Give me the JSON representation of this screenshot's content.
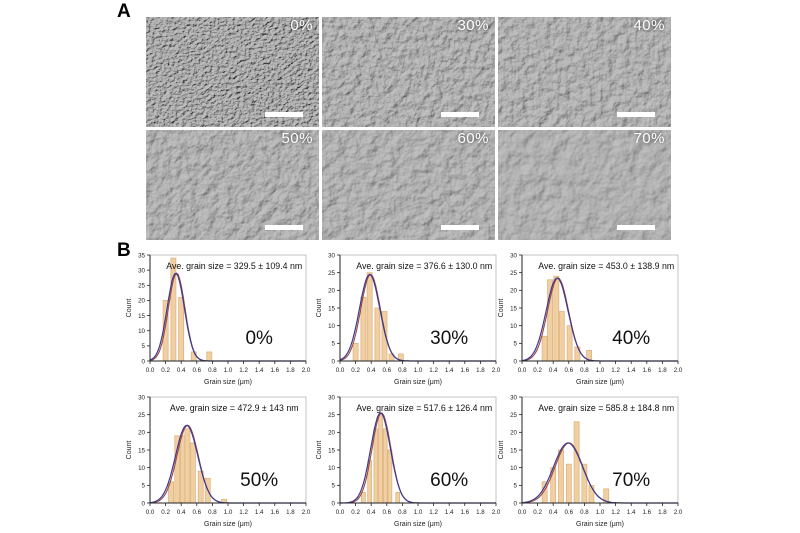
{
  "panel_a": {
    "label": "A",
    "images": [
      {
        "id": "0pct",
        "label": "0%"
      },
      {
        "id": "30pct",
        "label": "30%"
      },
      {
        "id": "40pct",
        "label": "40%"
      },
      {
        "id": "50pct",
        "label": "50%"
      },
      {
        "id": "60pct",
        "label": "60%"
      },
      {
        "id": "70pct",
        "label": "70%"
      }
    ]
  },
  "panel_b": {
    "label": "B"
  },
  "colors": {
    "bar_fill": "#f0cfa2",
    "bar_edge": "#dcae77",
    "fit_blue": "#3c3c8f",
    "fit_red": "#9e4545",
    "axis": "#222222",
    "text": "#111111",
    "frame": "#b5b5b5"
  },
  "chart_data": [
    {
      "type": "bar",
      "id": "0pct",
      "percent_label": "0%",
      "title": "Ave. grain size = 329.5 ± 109.4 nm",
      "mean_nm": 329.5,
      "sd_nm": 109.4,
      "xlabel": "Grain size (μm)",
      "ylabel": "Count",
      "xlim": [
        0.0,
        2.0
      ],
      "ylim": [
        0,
        35
      ],
      "xtick_step": 0.2,
      "ytick_step": 5,
      "bar_width_um": 0.065,
      "bars": [
        {
          "x": 0.2,
          "count": 20
        },
        {
          "x": 0.3,
          "count": 34
        },
        {
          "x": 0.4,
          "count": 21
        },
        {
          "x": 0.56,
          "count": 3
        },
        {
          "x": 0.76,
          "count": 3
        }
      ],
      "fit": {
        "mu_um": 0.33,
        "sigma_um": 0.11,
        "peak": 29
      }
    },
    {
      "type": "bar",
      "id": "30pct",
      "percent_label": "30%",
      "title": "Ave. grain size = 376.6 ± 130.0 nm",
      "mean_nm": 376.6,
      "sd_nm": 130.0,
      "xlabel": "Grain size (μm)",
      "ylabel": "Count",
      "xlim": [
        0.0,
        2.0
      ],
      "ylim": [
        0,
        30
      ],
      "xtick_step": 0.2,
      "ytick_step": 5,
      "bar_width_um": 0.065,
      "bars": [
        {
          "x": 0.2,
          "count": 5
        },
        {
          "x": 0.3,
          "count": 18
        },
        {
          "x": 0.38,
          "count": 25
        },
        {
          "x": 0.48,
          "count": 15
        },
        {
          "x": 0.57,
          "count": 14
        },
        {
          "x": 0.66,
          "count": 2
        },
        {
          "x": 0.78,
          "count": 2
        }
      ],
      "fit": {
        "mu_um": 0.38,
        "sigma_um": 0.13,
        "peak": 24.5
      }
    },
    {
      "type": "bar",
      "id": "40pct",
      "percent_label": "40%",
      "title": "Ave. grain size = 453.0 ± 138.9 nm",
      "mean_nm": 453.0,
      "sd_nm": 138.9,
      "xlabel": "Grain size (μm)",
      "ylabel": "Count",
      "xlim": [
        0.0,
        2.0
      ],
      "ylim": [
        0,
        30
      ],
      "xtick_step": 0.2,
      "ytick_step": 5,
      "bar_width_um": 0.065,
      "bars": [
        {
          "x": 0.29,
          "count": 7
        },
        {
          "x": 0.36,
          "count": 23
        },
        {
          "x": 0.44,
          "count": 24
        },
        {
          "x": 0.51,
          "count": 14
        },
        {
          "x": 0.61,
          "count": 10
        },
        {
          "x": 0.71,
          "count": 4
        },
        {
          "x": 0.86,
          "count": 3
        }
      ],
      "fit": {
        "mu_um": 0.45,
        "sigma_um": 0.14,
        "peak": 23.5
      }
    },
    {
      "type": "bar",
      "id": "50pct",
      "percent_label": "50%",
      "title": "Ave. grain size = 472.9 ± 143 nm",
      "mean_nm": 472.9,
      "sd_nm": 143,
      "xlabel": "Grain size (μm)",
      "ylabel": "Count",
      "xlim": [
        0.0,
        2.0
      ],
      "ylim": [
        0,
        30
      ],
      "xtick_step": 0.2,
      "ytick_step": 5,
      "bar_width_um": 0.065,
      "bars": [
        {
          "x": 0.27,
          "count": 6
        },
        {
          "x": 0.35,
          "count": 19
        },
        {
          "x": 0.42,
          "count": 19
        },
        {
          "x": 0.48,
          "count": 21
        },
        {
          "x": 0.55,
          "count": 17
        },
        {
          "x": 0.65,
          "count": 9
        },
        {
          "x": 0.74,
          "count": 7
        },
        {
          "x": 0.95,
          "count": 1
        }
      ],
      "fit": {
        "mu_um": 0.47,
        "sigma_um": 0.143,
        "peak": 22
      }
    },
    {
      "type": "bar",
      "id": "60pct",
      "percent_label": "60%",
      "title": "Ave. grain size = 517.6 ± 126.4 nm",
      "mean_nm": 517.6,
      "sd_nm": 126.4,
      "xlabel": "Grain size (μm)",
      "ylabel": "Count",
      "xlim": [
        0.0,
        2.0
      ],
      "ylim": [
        0,
        30
      ],
      "xtick_step": 0.2,
      "ytick_step": 5,
      "bar_width_um": 0.05,
      "bars": [
        {
          "x": 0.3,
          "count": 3
        },
        {
          "x": 0.38,
          "count": 12
        },
        {
          "x": 0.46,
          "count": 21
        },
        {
          "x": 0.52,
          "count": 25
        },
        {
          "x": 0.58,
          "count": 21
        },
        {
          "x": 0.64,
          "count": 15
        },
        {
          "x": 0.74,
          "count": 3
        }
      ],
      "fit": {
        "mu_um": 0.52,
        "sigma_um": 0.126,
        "peak": 25.5
      }
    },
    {
      "type": "bar",
      "id": "70pct",
      "percent_label": "70%",
      "title": "Ave. grain size = 585.8 ± 184.8 nm",
      "mean_nm": 585.8,
      "sd_nm": 184.8,
      "xlabel": "Grain size (μm)",
      "ylabel": "Count",
      "xlim": [
        0.0,
        2.0
      ],
      "ylim": [
        0,
        30
      ],
      "xtick_step": 0.2,
      "ytick_step": 5,
      "bar_width_um": 0.065,
      "bars": [
        {
          "x": 0.29,
          "count": 6
        },
        {
          "x": 0.4,
          "count": 10
        },
        {
          "x": 0.5,
          "count": 15
        },
        {
          "x": 0.6,
          "count": 11
        },
        {
          "x": 0.7,
          "count": 23
        },
        {
          "x": 0.8,
          "count": 11
        },
        {
          "x": 0.89,
          "count": 5
        },
        {
          "x": 1.08,
          "count": 4
        }
      ],
      "fit": {
        "mu_um": 0.59,
        "sigma_um": 0.185,
        "peak": 17
      }
    }
  ]
}
